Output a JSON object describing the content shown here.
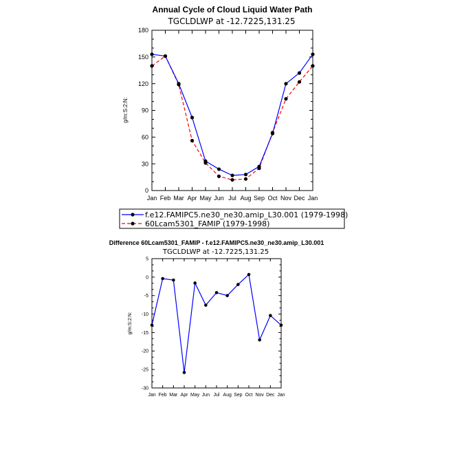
{
  "chart_data": [
    {
      "type": "line",
      "title": "Annual Cycle of Cloud Liquid Water Path",
      "subtitle": "TGCLDLWP at -12.7225,131.25",
      "ylabel": "g/m:S:2:N:",
      "xlabel": "",
      "ylim": [
        0,
        180
      ],
      "yticks": [
        "0",
        "30",
        "60",
        "90",
        "120",
        "150",
        "180"
      ],
      "categories": [
        "Jan",
        "Feb",
        "Mar",
        "Apr",
        "May",
        "Jun",
        "Jul",
        "Aug",
        "Sep",
        "Oct",
        "Nov",
        "Dec",
        "Jan"
      ],
      "series": [
        {
          "name": "f.e12.FAMIPC5.ne30_ne30.amip_L30.001 (1979-1998)",
          "color": "#0000ff",
          "dash": "solid",
          "values": [
            153,
            151,
            120,
            82,
            33,
            24,
            17,
            18,
            27,
            64,
            120,
            132,
            153
          ]
        },
        {
          "name": "60Lcam5301_FAMIP (1979-1998)",
          "color": "#ff0000",
          "dash": "dashed",
          "values": [
            140,
            151,
            119,
            56,
            31,
            16,
            12,
            13,
            25,
            65,
            103,
            122,
            140
          ]
        }
      ]
    },
    {
      "type": "line",
      "title": "Difference 60Lcam5301_FAMIP - f.e12.FAMIPC5.ne30_ne30.amip_L30.001",
      "subtitle": "TGCLDLWP at -12.7225,131.25",
      "ylabel": "g/m:S:2:N:",
      "xlabel": "",
      "ylim": [
        -30,
        5
      ],
      "yticks": [
        "5",
        "0",
        "-5",
        "-10",
        "-15",
        "-20",
        "-25",
        "-30"
      ],
      "categories": [
        "Jan",
        "Feb",
        "Mar",
        "Apr",
        "May",
        "Jun",
        "Jul",
        "Aug",
        "Sep",
        "Oct",
        "Nov",
        "Dec",
        "Jan"
      ],
      "series": [
        {
          "name": "difference",
          "color": "#0000ff",
          "dash": "solid",
          "values": [
            -13,
            -0.4,
            -0.8,
            -25.8,
            -1.6,
            -7.6,
            -4.2,
            -5,
            -2,
            0.7,
            -17,
            -10.4,
            -13
          ]
        }
      ]
    }
  ]
}
